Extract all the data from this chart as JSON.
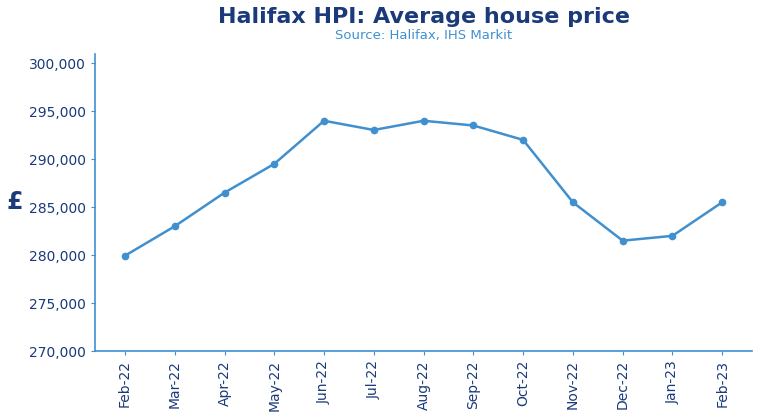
{
  "title": "Halifax HPI: Average house price",
  "subtitle": "Source: Halifax, IHS Markit",
  "ylabel": "£",
  "categories": [
    "Feb-22",
    "Mar-22",
    "Apr-22",
    "May-22",
    "Jun-22",
    "Jul-22",
    "Aug-22",
    "Sep-22",
    "Oct-22",
    "Nov-22",
    "Dec-22",
    "Jan-23",
    "Feb-23"
  ],
  "values": [
    279931,
    283000,
    286500,
    289500,
    293992,
    293030,
    293992,
    293500,
    292000,
    285500,
    281500,
    282000,
    285500
  ],
  "line_color": "#4090D0",
  "marker_color": "#4090D0",
  "title_color": "#1a3a7a",
  "subtitle_color": "#4090D0",
  "ylabel_color": "#1a3a7a",
  "tick_color": "#1a3a7a",
  "spine_color": "#4090D0",
  "ylim": [
    270000,
    301000
  ],
  "yticks": [
    270000,
    275000,
    280000,
    285000,
    290000,
    295000,
    300000
  ],
  "background_color": "#ffffff",
  "title_fontsize": 16,
  "subtitle_fontsize": 9.5,
  "ylabel_fontsize": 17,
  "tick_fontsize": 10,
  "line_width": 1.8,
  "marker_size": 4.5
}
